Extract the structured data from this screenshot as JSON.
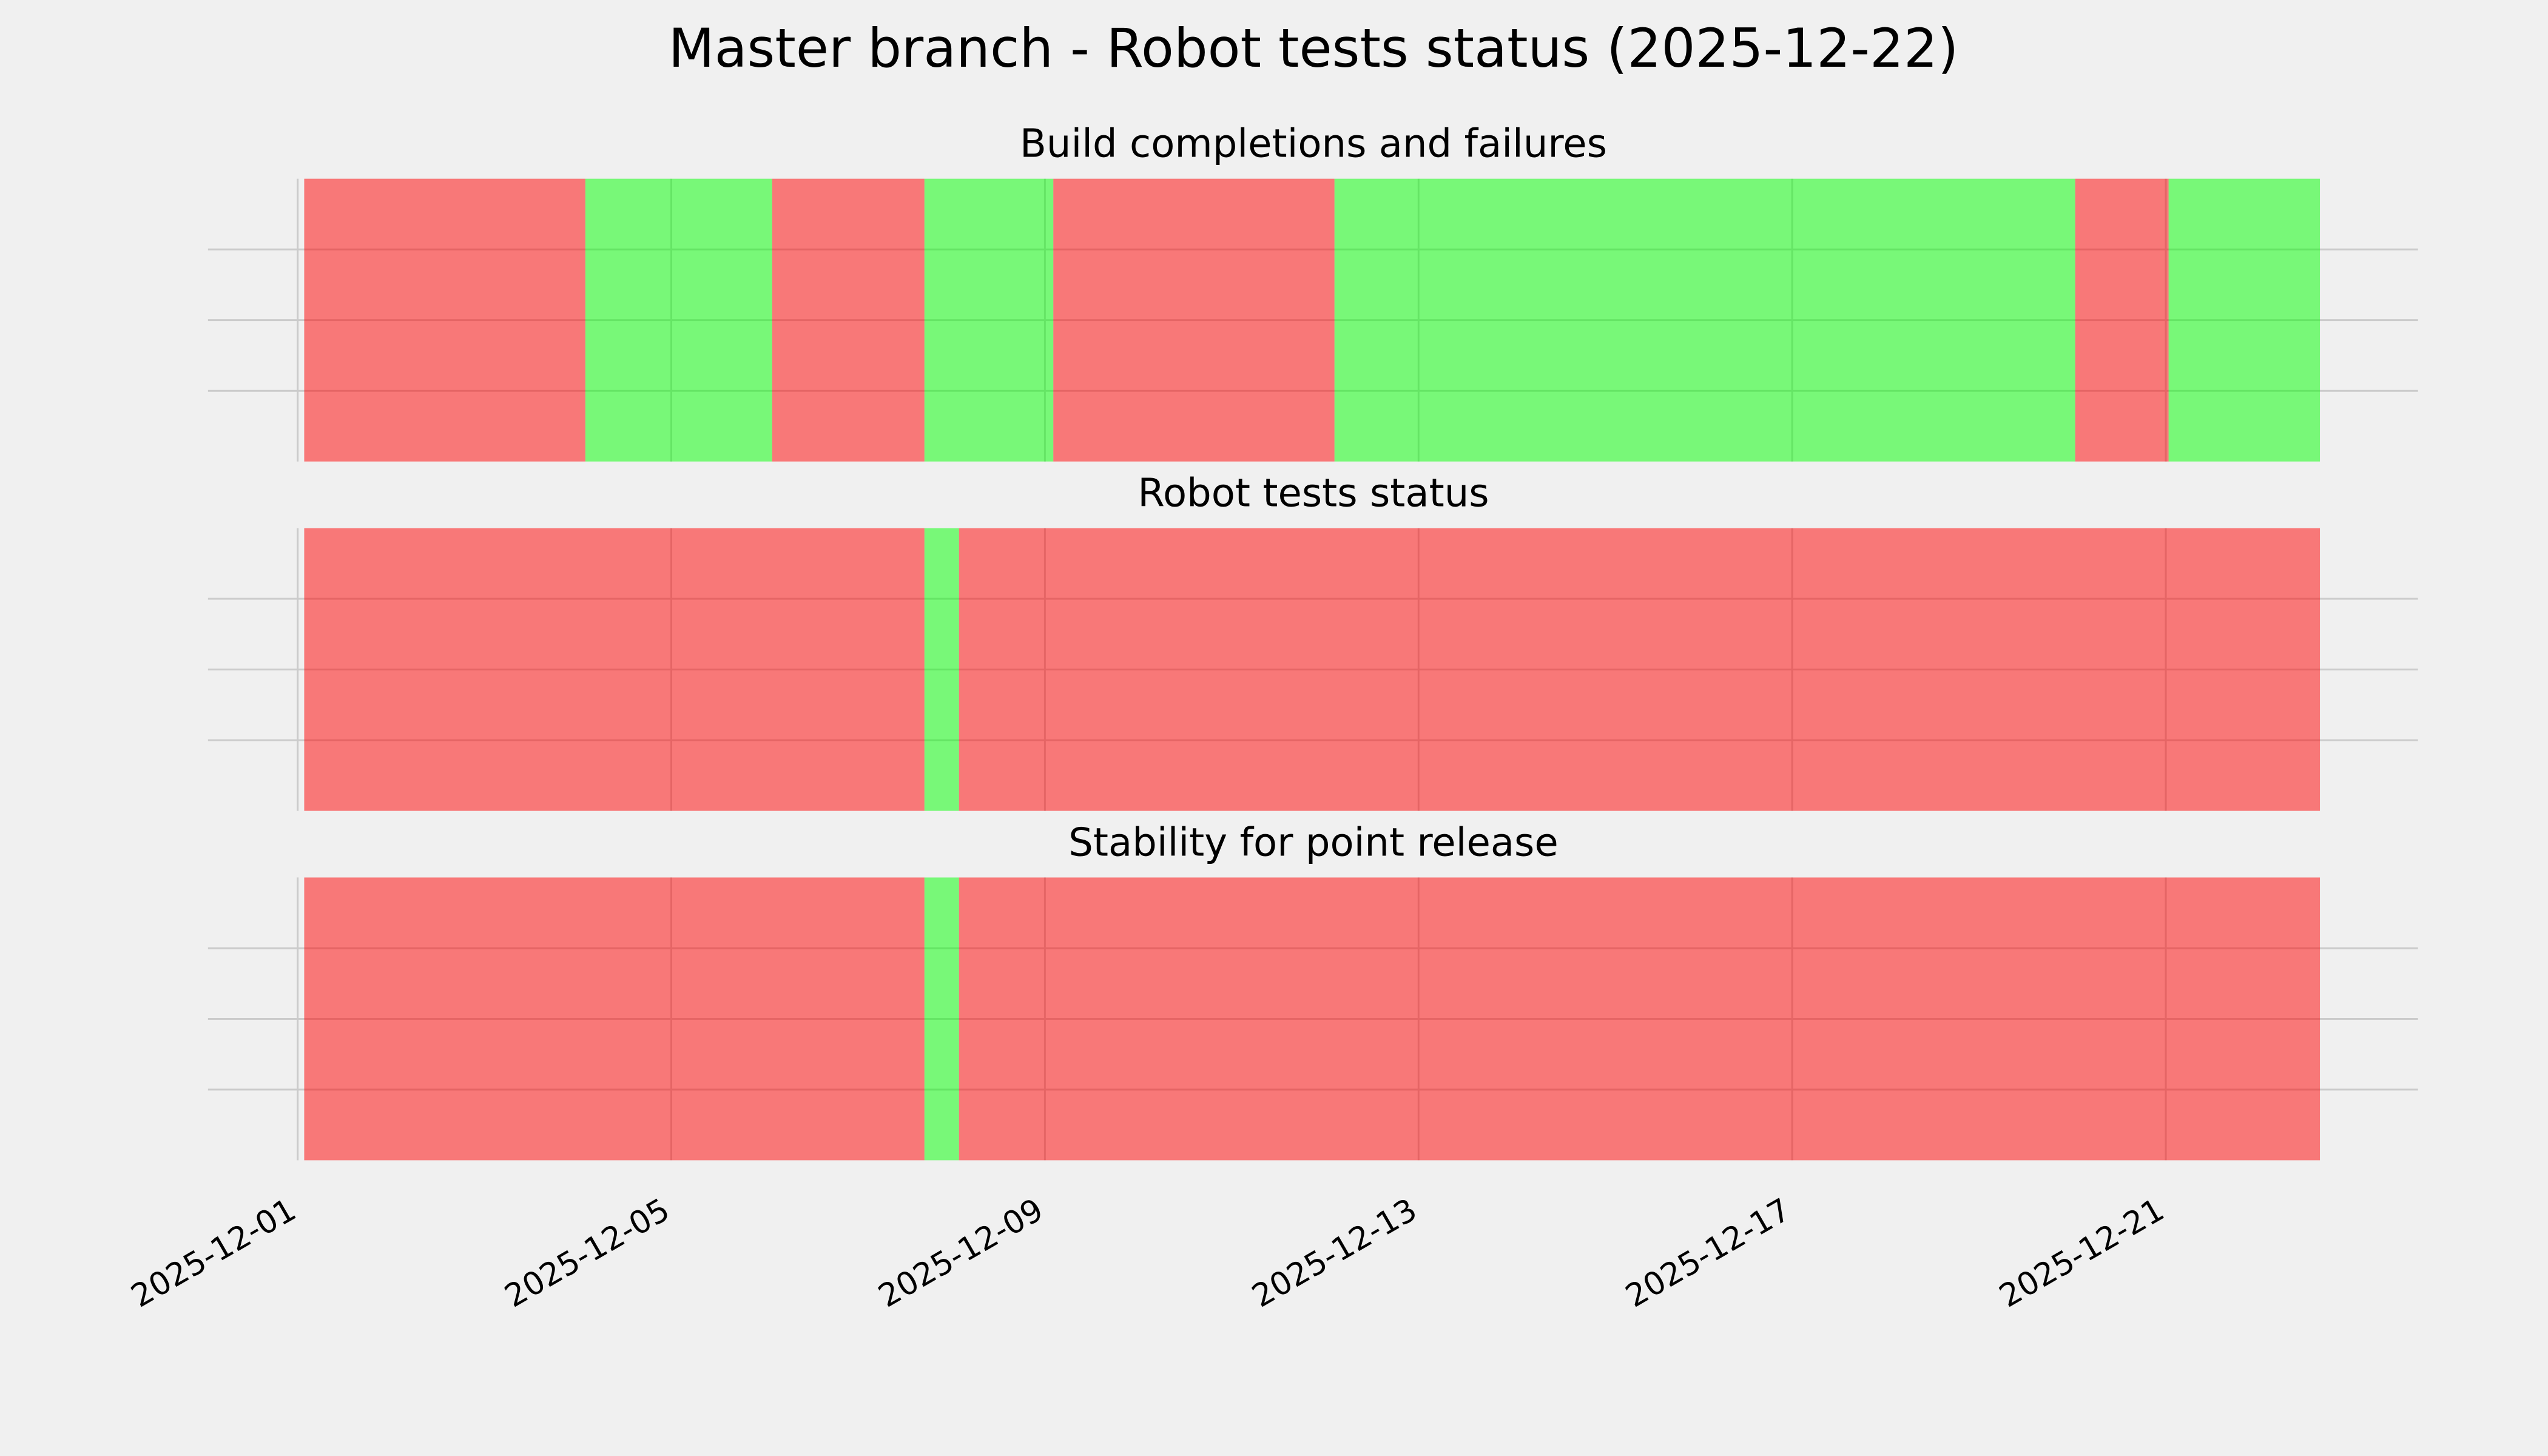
{
  "title": "Master branch - Robot tests status (2025-12-22)",
  "chart_data": [
    {
      "type": "timeline",
      "title": "Build completions and failures",
      "xlim": [
        -0.96,
        22.7
      ],
      "xticks": [
        0,
        4,
        8,
        12,
        16,
        20
      ],
      "ylim": [
        0,
        1
      ],
      "yticks": [
        0.25,
        0.5,
        0.75
      ],
      "grid": true,
      "alpha": 0.5,
      "starts": [
        0.07,
        3.08,
        5.08,
        6.71,
        8.09,
        11.1,
        19.03,
        20.03
      ],
      "ends": [
        3.08,
        5.08,
        6.71,
        8.09,
        11.1,
        19.03,
        20.03,
        21.65
      ],
      "colors": [
        "#ff0000",
        "#00ff00",
        "#ff0000",
        "#00ff00",
        "#ff0000",
        "#00ff00",
        "#ff0000",
        "#00ff00"
      ]
    },
    {
      "type": "timeline",
      "title": "Robot tests status",
      "xlim": [
        -0.96,
        22.7
      ],
      "xticks": [
        0,
        4,
        8,
        12,
        16,
        20
      ],
      "ylim": [
        0,
        1
      ],
      "yticks": [
        0.25,
        0.5,
        0.75
      ],
      "grid": true,
      "alpha": 0.5,
      "starts": [
        0.07,
        6.71,
        7.08
      ],
      "ends": [
        6.71,
        7.08,
        21.65
      ],
      "colors": [
        "#ff0000",
        "#00ff00",
        "#ff0000"
      ]
    },
    {
      "type": "timeline",
      "title": "Stability for point release",
      "xlim": [
        -0.96,
        22.7
      ],
      "xticks": [
        {
          "value": 0,
          "label": "2025-12-01"
        },
        {
          "value": 4,
          "label": "2025-12-05"
        },
        {
          "value": 8,
          "label": "2025-12-09"
        },
        {
          "value": 12,
          "label": "2025-12-13"
        },
        {
          "value": 16,
          "label": "2025-12-17"
        },
        {
          "value": 20,
          "label": "2025-12-21"
        }
      ],
      "ylim": [
        0,
        1
      ],
      "yticks": [
        0.25,
        0.5,
        0.75
      ],
      "grid": true,
      "alpha": 0.5,
      "starts": [
        0.07,
        6.71,
        7.08
      ],
      "ends": [
        6.71,
        7.08,
        21.65
      ],
      "colors": [
        "#ff0000",
        "#00ff00",
        "#ff0000"
      ]
    }
  ]
}
